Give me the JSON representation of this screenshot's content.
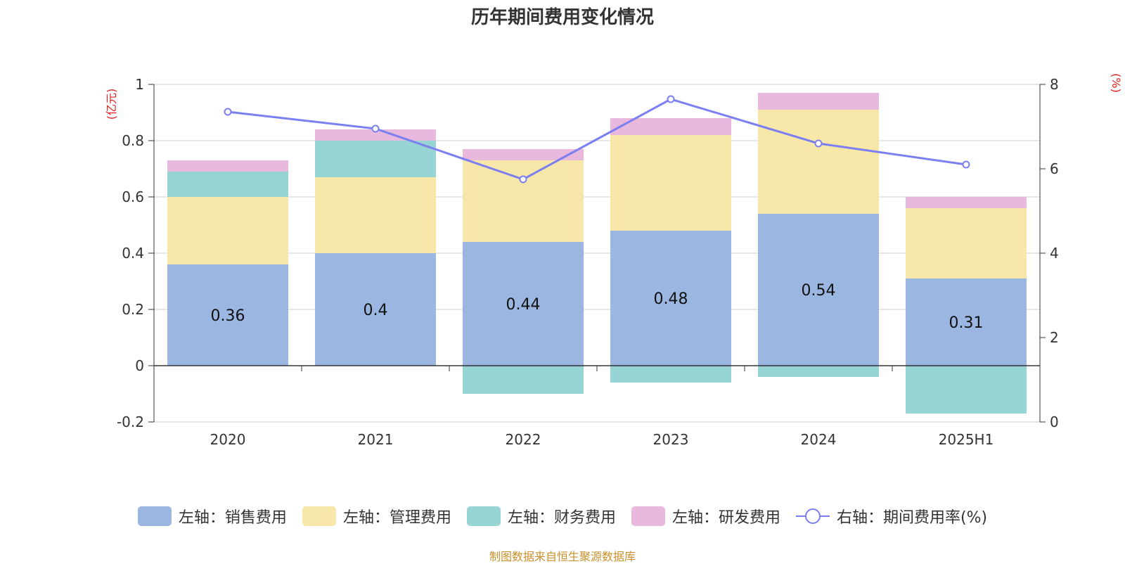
{
  "chart_data": {
    "type": "bar",
    "title": "历年期间费用变化情况",
    "categories": [
      "2020",
      "2021",
      "2022",
      "2023",
      "2024",
      "2025H1"
    ],
    "left_axis": {
      "unit_label": "(亿元)",
      "ylim": [
        -0.2,
        1.0
      ],
      "ticks": [
        -0.2,
        0,
        0.2,
        0.4,
        0.6,
        0.8,
        1
      ],
      "tick_labels": [
        "-0.2",
        "0",
        "0.2",
        "0.4",
        "0.6",
        "0.8",
        "1"
      ]
    },
    "right_axis": {
      "unit_label": "(%)",
      "ylim": [
        0,
        8
      ],
      "ticks": [
        0,
        2,
        4,
        6,
        8
      ],
      "tick_labels": [
        "0",
        "2",
        "4",
        "6",
        "8"
      ]
    },
    "series": [
      {
        "name": "左轴：销售费用",
        "kind": "bar",
        "axis": "left",
        "color": "#9bb6e0",
        "values": [
          0.36,
          0.4,
          0.44,
          0.48,
          0.54,
          0.31
        ],
        "labels": [
          "0.36",
          "0.4",
          "0.44",
          "0.48",
          "0.54",
          "0.31"
        ]
      },
      {
        "name": "左轴：管理费用",
        "kind": "bar",
        "axis": "left",
        "color": "#f7e7a8",
        "values": [
          0.24,
          0.27,
          0.29,
          0.34,
          0.37,
          0.25
        ]
      },
      {
        "name": "左轴：财务费用",
        "kind": "bar",
        "axis": "left",
        "color": "#97d4d4",
        "values": [
          0.09,
          0.13,
          -0.1,
          -0.06,
          -0.04,
          -0.17
        ]
      },
      {
        "name": "左轴：研发费用",
        "kind": "bar",
        "axis": "left",
        "color": "#e8b9dc",
        "values": [
          0.04,
          0.04,
          0.04,
          0.06,
          0.06,
          0.04
        ]
      },
      {
        "name": "右轴：期间费用率(%)",
        "kind": "line",
        "axis": "right",
        "color": "#7b7ff0",
        "values": [
          7.35,
          6.95,
          5.75,
          7.65,
          6.6,
          6.1
        ]
      }
    ],
    "grid": true,
    "legend_position": "bottom"
  },
  "colors": {
    "unit_label": "#e0201c",
    "source": "#c8902a"
  },
  "source_text": "制图数据来自恒生聚源数据库"
}
